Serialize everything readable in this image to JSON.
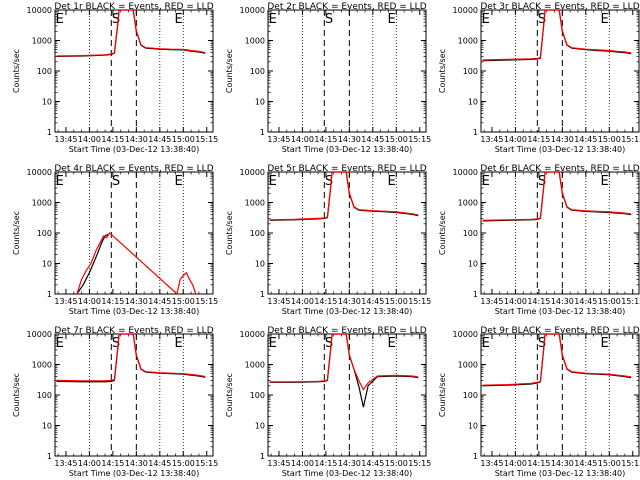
{
  "figure": {
    "x_ticks": [
      "13:45",
      "14:00",
      "14:15",
      "14:30",
      "14:45",
      "15:00",
      "15:15"
    ],
    "y_ticks": [
      "1",
      "10",
      "100",
      "1000",
      "10000"
    ],
    "ylabel": "Counts/sec",
    "xlabel": "Start Time (03-Dec-12 13:38:40)",
    "colors": {
      "events": "#000000",
      "lld": "#ff0000",
      "background": "#ffffff"
    }
  },
  "chart_data": [
    {
      "type": "line",
      "title": "Det 1r  BLACK = Events, RED = LLD",
      "y_scale": "log",
      "ylim": [
        1,
        10000
      ],
      "markers": [
        {
          "label": "E",
          "t": "13:41"
        },
        {
          "label": "S",
          "t": "14:17"
        },
        {
          "label": "E",
          "t": "14:57"
        }
      ],
      "series": [
        {
          "name": "BLACK = Events",
          "color": "#000000",
          "x": [
            "13:39",
            "13:55",
            "14:10",
            "14:14",
            "14:16",
            "14:18",
            "14:19",
            "14:24",
            "14:28",
            "14:30",
            "14:33",
            "14:36",
            "14:45",
            "14:52",
            "15:00",
            "15:05",
            "15:10",
            "15:14"
          ],
          "y": [
            300,
            310,
            330,
            350,
            380,
            3000,
            10000,
            10000,
            10000,
            2000,
            700,
            560,
            520,
            500,
            490,
            450,
            420,
            380
          ]
        },
        {
          "name": "RED = LLD",
          "color": "#ff0000",
          "x": [
            "13:39",
            "13:55",
            "14:10",
            "14:14",
            "14:16",
            "14:18",
            "14:19",
            "14:24",
            "14:28",
            "14:30",
            "14:33",
            "14:36",
            "14:45",
            "14:52",
            "15:00",
            "15:05",
            "15:10",
            "15:14"
          ],
          "y": [
            310,
            320,
            340,
            360,
            390,
            3100,
            10000,
            10000,
            10000,
            2100,
            720,
            580,
            540,
            520,
            510,
            470,
            440,
            400
          ]
        }
      ]
    },
    {
      "type": "line",
      "title": "Det 2r  BLACK = Events, RED = LLD",
      "y_scale": "log",
      "ylim": [
        1,
        10000
      ],
      "markers": [
        {
          "label": "E",
          "t": "13:41"
        },
        {
          "label": "S",
          "t": "14:17"
        },
        {
          "label": "E",
          "t": "14:57"
        }
      ],
      "series": []
    },
    {
      "type": "line",
      "title": "Det 3r  BLACK = Events, RED = LLD",
      "y_scale": "log",
      "ylim": [
        1,
        10000
      ],
      "markers": [
        {
          "label": "E",
          "t": "13:41"
        },
        {
          "label": "S",
          "t": "14:17"
        },
        {
          "label": "E",
          "t": "14:57"
        }
      ],
      "series": [
        {
          "name": "BLACK = Events",
          "color": "#000000",
          "x": [
            "13:39",
            "13:55",
            "14:10",
            "14:14",
            "14:16",
            "14:18",
            "14:19",
            "14:24",
            "14:28",
            "14:30",
            "14:33",
            "14:36",
            "14:45",
            "14:52",
            "15:00",
            "15:05",
            "15:10",
            "15:14"
          ],
          "y": [
            220,
            230,
            240,
            250,
            260,
            3000,
            10000,
            10000,
            10000,
            2000,
            700,
            560,
            500,
            470,
            450,
            420,
            400,
            370
          ]
        },
        {
          "name": "RED = LLD",
          "color": "#ff0000",
          "x": [
            "13:39",
            "13:55",
            "14:10",
            "14:14",
            "14:16",
            "14:18",
            "14:19",
            "14:24",
            "14:28",
            "14:30",
            "14:33",
            "14:36",
            "14:45",
            "14:52",
            "15:00",
            "15:05",
            "15:10",
            "15:14"
          ],
          "y": [
            230,
            240,
            250,
            260,
            270,
            3100,
            10000,
            10000,
            10000,
            2100,
            720,
            580,
            520,
            490,
            470,
            440,
            420,
            390
          ]
        }
      ]
    },
    {
      "type": "line",
      "title": "Det 4r  BLACK = Events, RED = LLD",
      "y_scale": "log",
      "ylim": [
        1,
        10000
      ],
      "markers": [
        {
          "label": "E",
          "t": "13:41"
        },
        {
          "label": "S",
          "t": "14:17"
        },
        {
          "label": "E",
          "t": "14:57"
        }
      ],
      "series": [
        {
          "name": "BLACK = Events",
          "color": "#000000",
          "x": [
            "13:52",
            "13:56",
            "14:00",
            "14:05",
            "14:08",
            "14:10",
            "14:12"
          ],
          "y": [
            1,
            2,
            5,
            20,
            50,
            80,
            90
          ]
        },
        {
          "name": "RED = LLD",
          "color": "#ff0000",
          "x": [
            "13:52",
            "13:55",
            "13:58",
            "14:01",
            "14:04",
            "14:07",
            "14:09",
            "14:11",
            "14:13",
            "14:14",
            "14:56",
            "14:58",
            "15:00",
            "15:02",
            "15:04",
            "15:06",
            "15:08"
          ],
          "y": [
            1,
            3,
            6,
            10,
            25,
            50,
            80,
            70,
            100,
            90,
            1,
            3,
            4,
            5,
            3,
            2,
            1
          ]
        }
      ]
    },
    {
      "type": "line",
      "title": "Det 5r  BLACK = Events, RED = LLD",
      "y_scale": "log",
      "ylim": [
        1,
        10000
      ],
      "markers": [
        {
          "label": "E",
          "t": "13:41"
        },
        {
          "label": "S",
          "t": "14:17"
        },
        {
          "label": "E",
          "t": "14:57"
        }
      ],
      "series": [
        {
          "name": "BLACK = Events",
          "color": "#000000",
          "x": [
            "13:39",
            "13:55",
            "14:10",
            "14:14",
            "14:16",
            "14:18",
            "14:19",
            "14:24",
            "14:28",
            "14:30",
            "14:33",
            "14:36",
            "14:45",
            "14:52",
            "15:00",
            "15:05",
            "15:10",
            "15:14"
          ],
          "y": [
            260,
            270,
            290,
            300,
            320,
            3000,
            10000,
            10000,
            10000,
            2000,
            700,
            560,
            520,
            500,
            470,
            440,
            410,
            370
          ]
        },
        {
          "name": "RED = LLD",
          "color": "#ff0000",
          "x": [
            "13:39",
            "13:55",
            "14:10",
            "14:14",
            "14:16",
            "14:18",
            "14:19",
            "14:24",
            "14:28",
            "14:30",
            "14:33",
            "14:36",
            "14:45",
            "14:52",
            "15:00",
            "15:05",
            "15:10",
            "15:14"
          ],
          "y": [
            270,
            280,
            300,
            310,
            330,
            3100,
            10000,
            10000,
            10000,
            2100,
            720,
            580,
            540,
            520,
            490,
            460,
            430,
            390
          ]
        }
      ]
    },
    {
      "type": "line",
      "title": "Det 6r  BLACK = Events, RED = LLD",
      "y_scale": "log",
      "ylim": [
        1,
        10000
      ],
      "markers": [
        {
          "label": "E",
          "t": "13:41"
        },
        {
          "label": "S",
          "t": "14:17"
        },
        {
          "label": "E",
          "t": "14:57"
        }
      ],
      "series": [
        {
          "name": "BLACK = Events",
          "color": "#000000",
          "x": [
            "13:39",
            "13:55",
            "14:10",
            "14:14",
            "14:16",
            "14:18",
            "14:19",
            "14:24",
            "14:28",
            "14:30",
            "14:33",
            "14:36",
            "14:45",
            "14:52",
            "15:00",
            "15:05",
            "15:10",
            "15:14"
          ],
          "y": [
            250,
            260,
            270,
            280,
            300,
            3000,
            10000,
            10000,
            10000,
            2000,
            700,
            560,
            510,
            490,
            470,
            450,
            430,
            400
          ]
        },
        {
          "name": "RED = LLD",
          "color": "#ff0000",
          "x": [
            "13:39",
            "13:55",
            "14:10",
            "14:14",
            "14:16",
            "14:18",
            "14:19",
            "14:24",
            "14:28",
            "14:30",
            "14:33",
            "14:36",
            "14:45",
            "14:52",
            "15:00",
            "15:05",
            "15:10",
            "15:14"
          ],
          "y": [
            260,
            270,
            280,
            290,
            310,
            3100,
            10000,
            10000,
            10000,
            2100,
            720,
            580,
            530,
            510,
            490,
            470,
            450,
            420
          ]
        }
      ]
    },
    {
      "type": "line",
      "title": "Det 7r  BLACK = Events, RED = LLD",
      "y_scale": "log",
      "ylim": [
        1,
        10000
      ],
      "markers": [
        {
          "label": "E",
          "t": "13:41"
        },
        {
          "label": "S",
          "t": "14:17"
        },
        {
          "label": "E",
          "t": "14:57"
        }
      ],
      "series": [
        {
          "name": "BLACK = Events",
          "color": "#000000",
          "x": [
            "13:39",
            "13:55",
            "14:10",
            "14:14",
            "14:16",
            "14:18",
            "14:19",
            "14:24",
            "14:28",
            "14:30",
            "14:33",
            "14:36",
            "14:45",
            "14:52",
            "15:00",
            "15:05",
            "15:10",
            "15:14"
          ],
          "y": [
            280,
            270,
            270,
            280,
            300,
            3000,
            10000,
            10000,
            10000,
            2000,
            700,
            560,
            520,
            500,
            480,
            450,
            420,
            380
          ]
        },
        {
          "name": "RED = LLD",
          "color": "#ff0000",
          "x": [
            "13:39",
            "13:55",
            "14:10",
            "14:14",
            "14:16",
            "14:18",
            "14:19",
            "14:24",
            "14:28",
            "14:30",
            "14:33",
            "14:36",
            "14:45",
            "14:52",
            "15:00",
            "15:05",
            "15:10",
            "15:14"
          ],
          "y": [
            300,
            290,
            290,
            300,
            320,
            3100,
            10000,
            10000,
            10000,
            2100,
            720,
            580,
            540,
            520,
            500,
            470,
            440,
            400
          ]
        }
      ]
    },
    {
      "type": "line",
      "title": "Det 8r  BLACK = Events, RED = LLD",
      "y_scale": "log",
      "ylim": [
        1,
        10000
      ],
      "markers": [
        {
          "label": "E",
          "t": "13:41"
        },
        {
          "label": "S",
          "t": "14:17"
        },
        {
          "label": "E",
          "t": "14:57"
        }
      ],
      "series": [
        {
          "name": "BLACK = Events",
          "color": "#000000",
          "x": [
            "13:39",
            "13:55",
            "14:10",
            "14:14",
            "14:16",
            "14:18",
            "14:19",
            "14:24",
            "14:28",
            "14:30",
            "14:33",
            "14:36",
            "14:39",
            "14:42",
            "14:48",
            "15:00",
            "15:10",
            "15:14"
          ],
          "y": [
            260,
            260,
            270,
            280,
            300,
            3000,
            10000,
            10000,
            10000,
            2000,
            700,
            200,
            40,
            200,
            400,
            420,
            400,
            370
          ]
        },
        {
          "name": "RED = LLD",
          "color": "#ff0000",
          "x": [
            "13:39",
            "13:55",
            "14:10",
            "14:14",
            "14:16",
            "14:18",
            "14:19",
            "14:24",
            "14:28",
            "14:30",
            "14:33",
            "14:36",
            "14:39",
            "14:42",
            "14:48",
            "15:00",
            "15:10",
            "15:14"
          ],
          "y": [
            270,
            270,
            280,
            290,
            310,
            3100,
            10000,
            10000,
            10000,
            2100,
            700,
            300,
            150,
            250,
            420,
            440,
            420,
            390
          ]
        }
      ]
    },
    {
      "type": "line",
      "title": "Det 9r  BLACK = Events, RED = LLD",
      "y_scale": "log",
      "ylim": [
        1,
        10000
      ],
      "markers": [
        {
          "label": "E",
          "t": "13:41"
        },
        {
          "label": "S",
          "t": "14:17"
        },
        {
          "label": "E",
          "t": "14:57"
        }
      ],
      "series": [
        {
          "name": "BLACK = Events",
          "color": "#000000",
          "x": [
            "13:39",
            "13:55",
            "14:10",
            "14:14",
            "14:16",
            "14:18",
            "14:19",
            "14:24",
            "14:28",
            "14:30",
            "14:33",
            "14:36",
            "14:45",
            "14:52",
            "15:00",
            "15:05",
            "15:10",
            "15:14"
          ],
          "y": [
            200,
            210,
            230,
            250,
            270,
            3000,
            10000,
            10000,
            10000,
            2000,
            700,
            560,
            500,
            480,
            460,
            430,
            400,
            370
          ]
        },
        {
          "name": "RED = LLD",
          "color": "#ff0000",
          "x": [
            "13:39",
            "13:55",
            "14:10",
            "14:14",
            "14:16",
            "14:18",
            "14:19",
            "14:24",
            "14:28",
            "14:30",
            "14:33",
            "14:36",
            "14:45",
            "14:52",
            "15:00",
            "15:05",
            "15:10",
            "15:14"
          ],
          "y": [
            210,
            220,
            240,
            260,
            280,
            3100,
            10000,
            10000,
            10000,
            2100,
            720,
            580,
            520,
            500,
            480,
            450,
            420,
            390
          ]
        }
      ]
    }
  ]
}
